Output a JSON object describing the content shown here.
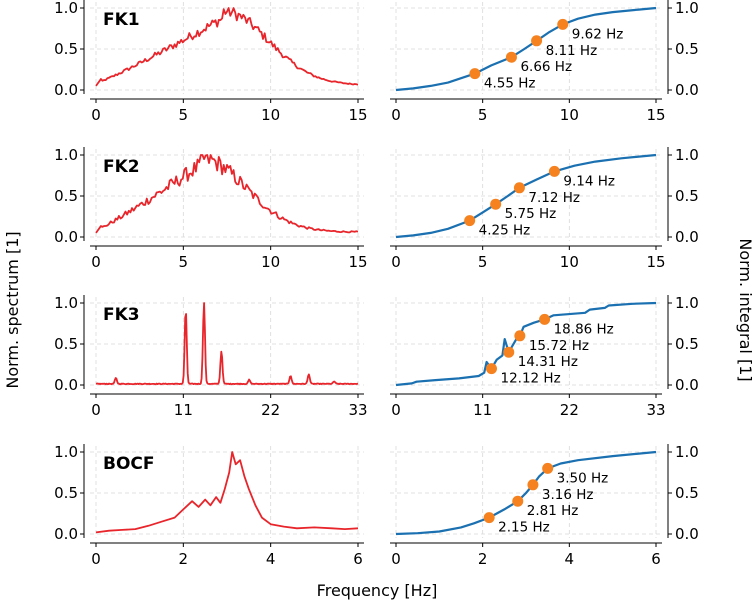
{
  "colors": {
    "spectrum": "#e8252b",
    "integral": "#1a70b0",
    "marker": "#f5821f"
  },
  "figure": {
    "xlabel": "Frequency [Hz]",
    "ylabel_left": "Norm. spectrum [1]",
    "ylabel_right": "Norm. integral [1]"
  },
  "chart_data": [
    {
      "name": "FK1",
      "xlim": [
        0,
        15
      ],
      "xticks": [
        0,
        5,
        10,
        15
      ],
      "ylim": [
        0,
        1
      ],
      "yticks": [
        "0.0",
        "0.5",
        "1.0"
      ],
      "spectrum": {
        "type": "line",
        "shape": "broadband",
        "peak_hz": 7.3,
        "noise": 0.08
      },
      "integral": {
        "type": "line",
        "points": [
          [
            0,
            0
          ],
          [
            1,
            0.02
          ],
          [
            2,
            0.05
          ],
          [
            3,
            0.09
          ],
          [
            4.55,
            0.2
          ],
          [
            5.5,
            0.3
          ],
          [
            6.66,
            0.4
          ],
          [
            7.4,
            0.5
          ],
          [
            8.11,
            0.6
          ],
          [
            8.8,
            0.7
          ],
          [
            9.62,
            0.8
          ],
          [
            10.5,
            0.87
          ],
          [
            11.5,
            0.92
          ],
          [
            12.5,
            0.95
          ],
          [
            14,
            0.98
          ],
          [
            15,
            1
          ]
        ]
      },
      "percentiles": [
        {
          "x": 4.55,
          "y": 0.2,
          "label": "4.55 Hz"
        },
        {
          "x": 6.66,
          "y": 0.4,
          "label": "6.66 Hz"
        },
        {
          "x": 8.11,
          "y": 0.6,
          "label": "8.11 Hz"
        },
        {
          "x": 9.62,
          "y": 0.8,
          "label": "9.62 Hz"
        }
      ]
    },
    {
      "name": "FK2",
      "xlim": [
        0,
        15
      ],
      "xticks": [
        0,
        5,
        10,
        15
      ],
      "ylim": [
        0,
        1
      ],
      "yticks": [
        "0.0",
        "0.5",
        "1.0"
      ],
      "spectrum": {
        "type": "line",
        "shape": "broadband",
        "peak_hz": 6.0,
        "noise": 0.12
      },
      "integral": {
        "type": "line",
        "points": [
          [
            0,
            0
          ],
          [
            1,
            0.02
          ],
          [
            2,
            0.05
          ],
          [
            3,
            0.1
          ],
          [
            4.25,
            0.2
          ],
          [
            5,
            0.3
          ],
          [
            5.75,
            0.4
          ],
          [
            6.45,
            0.5
          ],
          [
            7.12,
            0.6
          ],
          [
            8.1,
            0.7
          ],
          [
            9.14,
            0.8
          ],
          [
            10.3,
            0.87
          ],
          [
            11.5,
            0.92
          ],
          [
            13,
            0.96
          ],
          [
            15,
            1
          ]
        ]
      },
      "percentiles": [
        {
          "x": 4.25,
          "y": 0.2,
          "label": "4.25 Hz"
        },
        {
          "x": 5.75,
          "y": 0.4,
          "label": "5.75 Hz"
        },
        {
          "x": 7.12,
          "y": 0.6,
          "label": "7.12 Hz"
        },
        {
          "x": 9.14,
          "y": 0.8,
          "label": "9.14 Hz"
        }
      ]
    },
    {
      "name": "FK3",
      "xlim": [
        0,
        33
      ],
      "xticks": [
        0,
        11,
        22,
        33
      ],
      "ylim": [
        0,
        1
      ],
      "yticks": [
        "0.0",
        "0.5",
        "1.0"
      ],
      "spectrum": {
        "type": "line",
        "shape": "peaks",
        "baseline": 0.01,
        "peaks": [
          [
            2.5,
            0.07
          ],
          [
            11.3,
            0.9
          ],
          [
            13.6,
            1.0
          ],
          [
            15.8,
            0.4
          ],
          [
            19.3,
            0.05
          ],
          [
            24.5,
            0.1
          ],
          [
            26.8,
            0.12
          ],
          [
            30,
            0.03
          ]
        ]
      },
      "integral": {
        "type": "line",
        "points": [
          [
            0,
            0
          ],
          [
            2,
            0.02
          ],
          [
            2.6,
            0.04
          ],
          [
            5,
            0.06
          ],
          [
            8,
            0.08
          ],
          [
            10.5,
            0.11
          ],
          [
            11.2,
            0.15
          ],
          [
            11.5,
            0.28
          ],
          [
            12.12,
            0.2
          ],
          [
            12.8,
            0.31
          ],
          [
            13.5,
            0.36
          ],
          [
            13.8,
            0.56
          ],
          [
            14.31,
            0.4
          ],
          [
            15.4,
            0.58
          ],
          [
            15.72,
            0.6
          ],
          [
            16.2,
            0.71
          ],
          [
            17.5,
            0.76
          ],
          [
            18.86,
            0.8
          ],
          [
            20,
            0.85
          ],
          [
            24,
            0.88
          ],
          [
            24.6,
            0.92
          ],
          [
            26.5,
            0.94
          ],
          [
            27,
            0.97
          ],
          [
            30,
            0.99
          ],
          [
            33,
            1
          ]
        ]
      },
      "percentiles": [
        {
          "x": 12.12,
          "y": 0.2,
          "label": "12.12 Hz"
        },
        {
          "x": 14.31,
          "y": 0.4,
          "label": "14.31 Hz"
        },
        {
          "x": 15.72,
          "y": 0.6,
          "label": "15.72 Hz"
        },
        {
          "x": 18.86,
          "y": 0.8,
          "label": "18.86 Hz"
        }
      ]
    },
    {
      "name": "BOCF",
      "xlim": [
        0,
        6
      ],
      "xticks": [
        0,
        2,
        4,
        6
      ],
      "ylim": [
        0,
        1
      ],
      "yticks": [
        "0.0",
        "0.5",
        "1.0"
      ],
      "spectrum": {
        "type": "line",
        "shape": "custom",
        "points": [
          [
            0,
            0.02
          ],
          [
            0.3,
            0.04
          ],
          [
            0.6,
            0.05
          ],
          [
            0.9,
            0.06
          ],
          [
            1.2,
            0.1
          ],
          [
            1.5,
            0.15
          ],
          [
            1.8,
            0.2
          ],
          [
            2.0,
            0.3
          ],
          [
            2.2,
            0.4
          ],
          [
            2.35,
            0.33
          ],
          [
            2.5,
            0.42
          ],
          [
            2.62,
            0.35
          ],
          [
            2.75,
            0.45
          ],
          [
            2.85,
            0.38
          ],
          [
            2.95,
            0.55
          ],
          [
            3.05,
            0.75
          ],
          [
            3.12,
            1.0
          ],
          [
            3.2,
            0.85
          ],
          [
            3.3,
            0.9
          ],
          [
            3.4,
            0.7
          ],
          [
            3.5,
            0.55
          ],
          [
            3.65,
            0.35
          ],
          [
            3.8,
            0.2
          ],
          [
            4.0,
            0.12
          ],
          [
            4.3,
            0.09
          ],
          [
            4.6,
            0.07
          ],
          [
            5.0,
            0.08
          ],
          [
            5.4,
            0.07
          ],
          [
            5.7,
            0.06
          ],
          [
            6.0,
            0.07
          ]
        ]
      },
      "integral": {
        "type": "line",
        "points": [
          [
            0,
            0
          ],
          [
            0.5,
            0.01
          ],
          [
            1,
            0.03
          ],
          [
            1.5,
            0.08
          ],
          [
            1.8,
            0.13
          ],
          [
            2.15,
            0.2
          ],
          [
            2.5,
            0.3
          ],
          [
            2.81,
            0.4
          ],
          [
            3.0,
            0.5
          ],
          [
            3.16,
            0.6
          ],
          [
            3.3,
            0.7
          ],
          [
            3.5,
            0.8
          ],
          [
            3.8,
            0.86
          ],
          [
            4.2,
            0.9
          ],
          [
            5,
            0.95
          ],
          [
            6,
            1
          ]
        ]
      },
      "percentiles": [
        {
          "x": 2.15,
          "y": 0.2,
          "label": "2.15 Hz"
        },
        {
          "x": 2.81,
          "y": 0.4,
          "label": "2.81 Hz"
        },
        {
          "x": 3.16,
          "y": 0.6,
          "label": "3.16 Hz"
        },
        {
          "x": 3.5,
          "y": 0.8,
          "label": "3.50 Hz"
        }
      ]
    }
  ]
}
